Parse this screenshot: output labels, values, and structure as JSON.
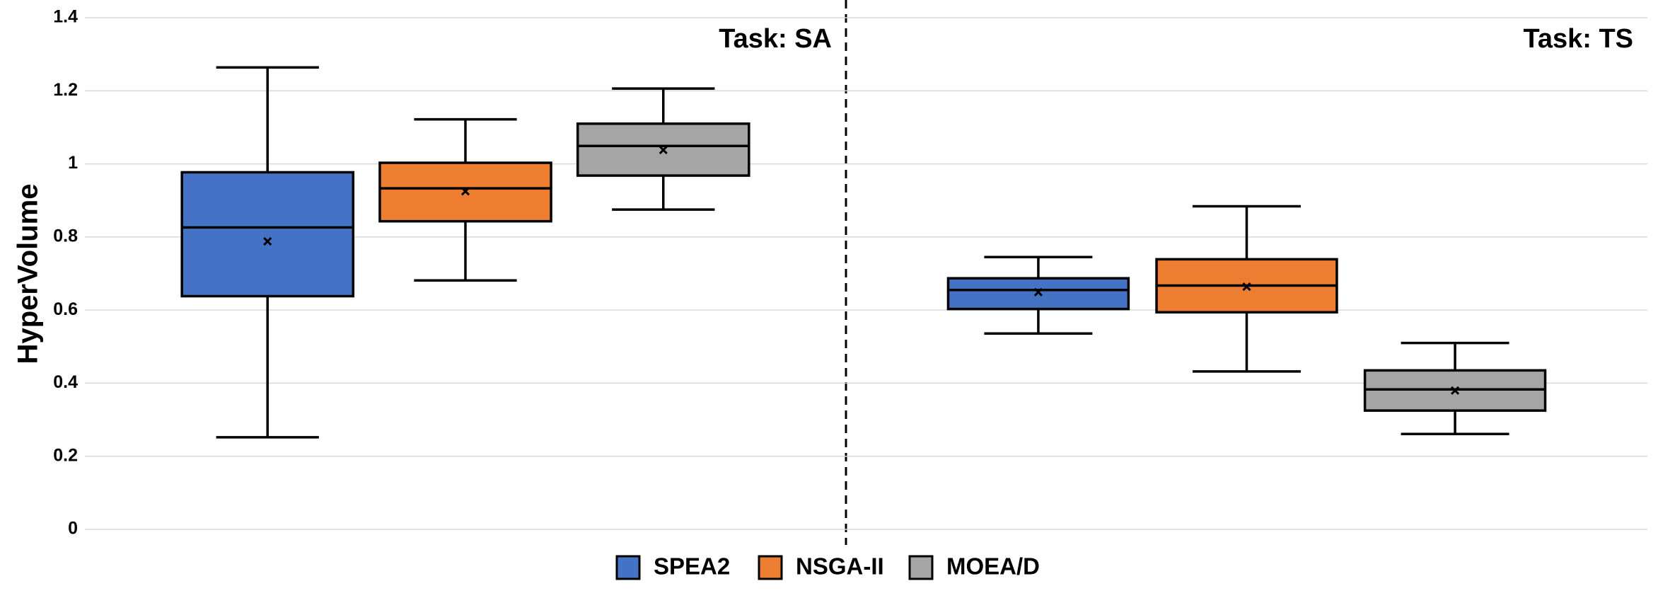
{
  "chart_data": {
    "type": "box",
    "y_label": "HyperVolume",
    "categories": [
      "Task: SA",
      "Task: TS"
    ],
    "ylim": [
      0,
      1.4
    ],
    "yticks": [
      0,
      0.2,
      0.4,
      0.6,
      0.8,
      1,
      1.2,
      1.4
    ],
    "grid": true,
    "legend": "bottom",
    "series": [
      {
        "name": "SPEA2",
        "color": "#4472c4",
        "values": [
          {
            "min": 0.252,
            "q1": 0.638,
            "median": 0.826,
            "q3": 0.977,
            "max": 1.264,
            "mean": 0.788
          },
          {
            "min": 0.536,
            "q1": 0.603,
            "median": 0.655,
            "q3": 0.687,
            "max": 0.745,
            "mean": 0.649
          }
        ]
      },
      {
        "name": "NSGA-II",
        "color": "#ed7d31",
        "values": [
          {
            "min": 0.681,
            "q1": 0.843,
            "median": 0.933,
            "q3": 1.003,
            "max": 1.122,
            "mean": 0.925
          },
          {
            "min": 0.432,
            "q1": 0.594,
            "median": 0.667,
            "q3": 0.739,
            "max": 0.884,
            "mean": 0.664
          }
        ]
      },
      {
        "name": "MOEA/D",
        "color": "#a5a5a5",
        "values": [
          {
            "min": 0.875,
            "q1": 0.968,
            "median": 1.049,
            "q3": 1.11,
            "max": 1.206,
            "mean": 1.038
          },
          {
            "min": 0.261,
            "q1": 0.325,
            "median": 0.383,
            "q3": 0.435,
            "max": 0.51,
            "mean": 0.38
          }
        ]
      }
    ]
  }
}
